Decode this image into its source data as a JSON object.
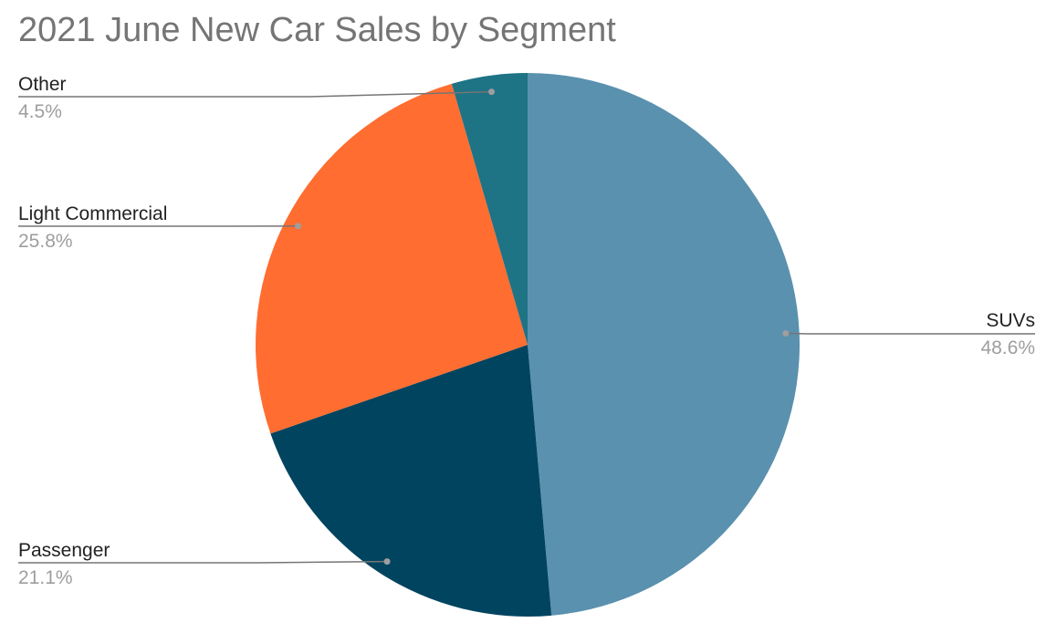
{
  "chart_data": {
    "type": "pie",
    "title": "2021 June New Car Sales by Segment",
    "slices": [
      {
        "label": "SUVs",
        "value": 48.6,
        "display": "48.6%",
        "color": "#5a91ae"
      },
      {
        "label": "Passenger",
        "value": 21.1,
        "display": "21.1%",
        "color": "#00445f"
      },
      {
        "label": "Light Commercial",
        "value": 25.8,
        "display": "25.8%",
        "color": "#ff6d31"
      },
      {
        "label": "Other",
        "value": 4.5,
        "display": "4.5%",
        "color": "#1e7385"
      }
    ],
    "legend": "none",
    "data_labels": "outside with leader lines"
  }
}
